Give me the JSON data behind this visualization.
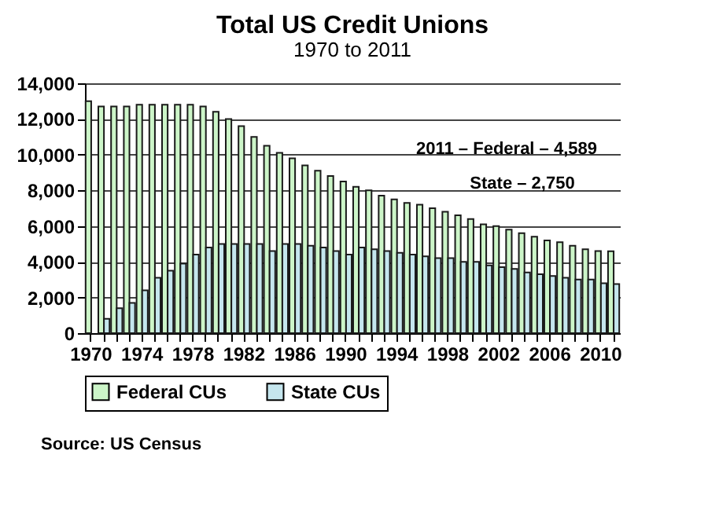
{
  "chart_data": {
    "type": "bar",
    "title": "Total US Credit Unions",
    "subtitle": "1970 to 2011",
    "categories": [
      "1970",
      null,
      null,
      null,
      "1974",
      null,
      null,
      null,
      "1978",
      null,
      null,
      null,
      "1982",
      null,
      null,
      null,
      "1986",
      null,
      null,
      null,
      "1990",
      null,
      null,
      null,
      "1994",
      null,
      null,
      null,
      "1998",
      null,
      null,
      null,
      "2002",
      null,
      null,
      null,
      "2006",
      null,
      null,
      null,
      "2010",
      null
    ],
    "series": [
      {
        "name": "Federal CUs",
        "color": "#ccf5c8",
        "values": [
          13000,
          12700,
          12700,
          12700,
          12800,
          12800,
          12800,
          12800,
          12800,
          12700,
          12400,
          12000,
          11600,
          11000,
          10500,
          10100,
          9800,
          9400,
          9100,
          8800,
          8500,
          8200,
          8000,
          7700,
          7500,
          7300,
          7200,
          7000,
          6800,
          6600,
          6400,
          6100,
          6000,
          5800,
          5600,
          5400,
          5200,
          5100,
          4900,
          4700,
          4600,
          4589
        ]
      },
      {
        "name": "State CUs",
        "color": "#c5e6ee",
        "values": [
          null,
          800,
          1400,
          1700,
          2400,
          3100,
          3500,
          3900,
          4400,
          4800,
          5000,
          5000,
          5000,
          5000,
          4600,
          5000,
          5000,
          4900,
          4800,
          4600,
          4400,
          4800,
          4700,
          4600,
          4500,
          4400,
          4300,
          4200,
          4200,
          4000,
          4000,
          3800,
          3700,
          3600,
          3400,
          3300,
          3200,
          3100,
          3000,
          3000,
          2800,
          2750
        ]
      }
    ],
    "ylim": [
      0,
      14000
    ],
    "yticks": [
      0,
      {
        "value": 2000,
        "label": "2,000"
      },
      {
        "value": 4000,
        "label": "4,000"
      },
      {
        "value": 6000,
        "label": "6,000"
      },
      {
        "value": 8000,
        "label": "8,000"
      },
      {
        "value": 10000,
        "label": "10,000"
      },
      {
        "value": 12000,
        "label": "12,000"
      },
      {
        "value": 14000,
        "label": "14,000"
      }
    ],
    "grid": "y",
    "legend": "bottom",
    "annotations": [
      "2011 – Federal – 4,589",
      "State – 2,750",
      "Source: US Census"
    ]
  }
}
